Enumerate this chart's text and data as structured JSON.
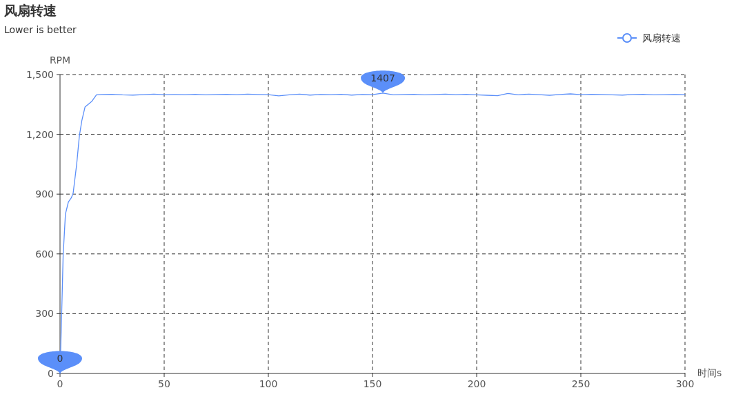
{
  "chart_data": {
    "type": "line",
    "title": "风扇转速",
    "subtitle": "Lower is better",
    "xlabel": "时间s",
    "ylabel": "RPM",
    "xlim": [
      0,
      300
    ],
    "xticks": [
      0,
      50,
      100,
      150,
      200,
      250,
      300
    ],
    "ylim": [
      0,
      1500
    ],
    "yticks": [
      {
        "value": 0,
        "label": "0"
      },
      {
        "value": 300,
        "label": "300"
      },
      {
        "value": 600,
        "label": "600"
      },
      {
        "value": 900,
        "label": "900"
      },
      {
        "value": 1200,
        "label": "1,200"
      },
      {
        "value": 1500,
        "label": "1,500"
      }
    ],
    "grid": true,
    "legend": "top right",
    "marker": "none",
    "line_style": "solid",
    "series": [
      {
        "name": "风扇转速",
        "color": "#5b8ff9",
        "x": [
          0,
          0.8,
          1.5,
          2.6,
          4,
          5.4,
          6.3,
          8,
          9.3,
          10.5,
          12,
          15.3,
          17.5,
          20,
          25,
          30,
          35,
          40,
          45,
          50,
          55,
          60,
          65,
          70,
          75,
          80,
          85,
          90,
          95,
          100,
          105,
          110,
          115,
          120,
          125,
          130,
          135,
          140,
          145,
          150,
          155,
          160,
          165,
          170,
          175,
          180,
          185,
          190,
          195,
          200,
          205,
          210,
          215,
          220,
          225,
          230,
          235,
          240,
          245,
          250,
          255,
          260,
          265,
          270,
          275,
          280,
          285,
          290,
          295,
          300
        ],
        "values": [
          0,
          300,
          592,
          800,
          860,
          881,
          904,
          1050,
          1193,
          1270,
          1337,
          1366,
          1398,
          1400,
          1401,
          1398,
          1397,
          1399,
          1402,
          1399,
          1400,
          1399,
          1401,
          1398,
          1400,
          1401,
          1399,
          1402,
          1400,
          1399,
          1393,
          1398,
          1402,
          1397,
          1400,
          1399,
          1401,
          1397,
          1400,
          1399,
          1407,
          1398,
          1400,
          1401,
          1398,
          1400,
          1402,
          1399,
          1401,
          1398,
          1396,
          1394,
          1405,
          1398,
          1402,
          1399,
          1396,
          1400,
          1403,
          1399,
          1401,
          1400,
          1398,
          1397,
          1400,
          1401,
          1398,
          1399,
          1400,
          1399
        ]
      }
    ],
    "annotations": [
      {
        "text": "1407",
        "x": 155,
        "y": 1407
      },
      {
        "text": "0",
        "x": 0,
        "y": 0
      }
    ]
  }
}
